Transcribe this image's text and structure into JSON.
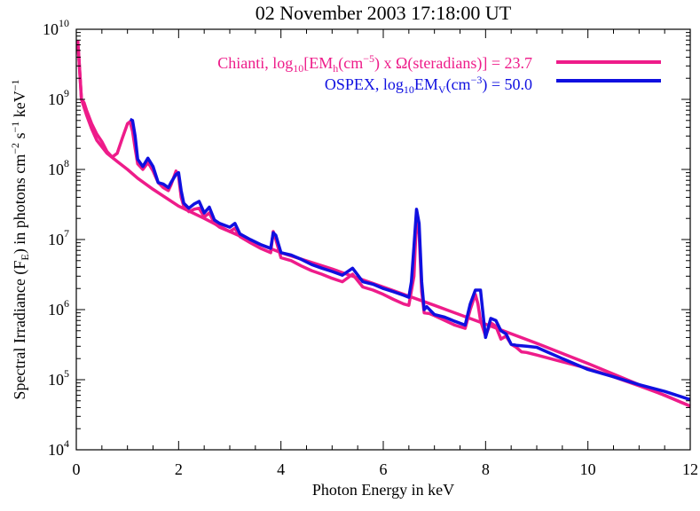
{
  "chart_data": {
    "type": "line",
    "title": "02 November 2003 17:18:00 UT",
    "xlabel": "Photon Energy in keV",
    "ylabel": "Spectral Irradiance (F_E) in photons cm^-2 s^-1 keV^-1",
    "xlim": [
      0,
      12
    ],
    "ylim": [
      10000,
      10000000000
    ],
    "yscale": "log",
    "grid": false,
    "legend_position": "top-right",
    "x_ticks": [
      0,
      2,
      4,
      6,
      8,
      10,
      12
    ],
    "y_ticks": [
      10000,
      100000,
      1000000,
      10000000,
      100000000,
      1000000000,
      10000000000
    ],
    "colors": {
      "chianti": "#ee1c8a",
      "ospex": "#1010e0"
    },
    "legend": [
      {
        "name": "Chianti, log10[EMh(cm^-5) x Ω(steradians)] = 23.7",
        "color": "#ee1c8a"
      },
      {
        "name": "OSPEX, log10EMV(cm^-3) = 50.0",
        "color": "#1010e0"
      }
    ],
    "series": [
      {
        "name": "Chianti, log10[EMh(cm^-5) x Ω(steradians)] = 23.7",
        "color": "#ee1c8a",
        "x": [
          0.03,
          0.05,
          0.1,
          0.15,
          0.2,
          0.3,
          0.4,
          0.5,
          0.6,
          0.7,
          0.8,
          0.9,
          1.0,
          1.05,
          1.1,
          1.15,
          1.2,
          1.3,
          1.4,
          1.45,
          1.5,
          1.6,
          1.7,
          1.8,
          1.85,
          1.95,
          2.0,
          2.05,
          2.1,
          2.2,
          2.3,
          2.4,
          2.5,
          2.6,
          2.7,
          2.8,
          3.0,
          3.1,
          3.2,
          3.4,
          3.6,
          3.8,
          3.85,
          3.9,
          4.0,
          4.2,
          4.4,
          4.6,
          4.8,
          5.0,
          5.2,
          5.4,
          5.6,
          5.8,
          6.0,
          6.2,
          6.4,
          6.5,
          6.6,
          6.65,
          6.7,
          6.75,
          6.8,
          6.9,
          7.0,
          7.2,
          7.4,
          7.6,
          7.7,
          7.8,
          7.85,
          7.9,
          8.0,
          8.1,
          8.2,
          8.3,
          8.4,
          8.5,
          8.6,
          8.7,
          8.8,
          9.0,
          9.5,
          10.0,
          10.5,
          11.0,
          11.5,
          12.0
        ],
        "y": [
          6000000000,
          4000000000,
          1000000000,
          900000000,
          700000000,
          450000000,
          320000000,
          250000000,
          180000000,
          150000000,
          170000000,
          280000000,
          450000000,
          480000000,
          350000000,
          200000000,
          120000000,
          100000000,
          125000000,
          110000000,
          95000000,
          65000000,
          55000000,
          50000000,
          60000000,
          95000000,
          80000000,
          40000000,
          30000000,
          25000000,
          27000000,
          28000000,
          21000000,
          24000000,
          17000000,
          15000000,
          13000000,
          14500000,
          11000000,
          9000000,
          7500000,
          6500000,
          13000000,
          10000000,
          5500000,
          5000000,
          4200000,
          3600000,
          3200000,
          2800000,
          2500000,
          3200000,
          2100000,
          1900000,
          1650000,
          1400000,
          1200000,
          1150000,
          3000000,
          20000000,
          12000000,
          1800000,
          900000,
          880000,
          820000,
          700000,
          600000,
          540000,
          1000000,
          1650000,
          1200000,
          700000,
          420000,
          650000,
          580000,
          380000,
          420000,
          320000,
          290000,
          250000,
          245000,
          225000,
          180000,
          145000,
          110000,
          82000,
          60000,
          42000
        ]
      },
      {
        "name": "OSPEX, log10EMV(cm^-3) = 50.0",
        "color": "#1010e0",
        "x": [
          1.05,
          1.1,
          1.15,
          1.2,
          1.3,
          1.4,
          1.5,
          1.6,
          1.7,
          1.8,
          1.85,
          1.95,
          2.0,
          2.05,
          2.1,
          2.2,
          2.3,
          2.4,
          2.5,
          2.6,
          2.7,
          2.8,
          3.0,
          3.1,
          3.2,
          3.4,
          3.6,
          3.8,
          3.85,
          3.9,
          4.0,
          4.2,
          4.4,
          4.6,
          4.8,
          5.0,
          5.2,
          5.4,
          5.6,
          5.8,
          6.0,
          6.2,
          6.4,
          6.5,
          6.55,
          6.6,
          6.65,
          6.7,
          6.75,
          6.8,
          6.85,
          7.0,
          7.2,
          7.4,
          7.6,
          7.7,
          7.8,
          7.9,
          8.0,
          8.1,
          8.2,
          8.3,
          8.4,
          8.5,
          8.6,
          8.8,
          9.0,
          9.2,
          9.5,
          10.0,
          10.5,
          11.0,
          11.5,
          12.0
        ],
        "y": [
          520000000,
          500000000,
          300000000,
          140000000,
          110000000,
          145000000,
          110000000,
          65000000,
          62000000,
          55000000,
          65000000,
          85000000,
          90000000,
          50000000,
          33000000,
          28000000,
          32000000,
          35000000,
          24000000,
          29000000,
          19000000,
          17000000,
          15000000,
          17000000,
          12000000,
          10000000,
          8500000,
          7500000,
          12500000,
          11500000,
          6500000,
          6000000,
          5200000,
          4400000,
          3900000,
          3500000,
          3100000,
          3900000,
          2500000,
          2300000,
          2000000,
          1800000,
          1600000,
          1500000,
          2500000,
          8000000,
          27000000,
          17000000,
          2500000,
          1000000,
          1100000,
          850000,
          780000,
          680000,
          600000,
          1200000,
          1900000,
          1900000,
          400000,
          750000,
          700000,
          500000,
          450000,
          320000,
          310000,
          300000,
          290000,
          250000,
          200000,
          140000,
          110000,
          85000,
          68000,
          52000
        ]
      },
      {
        "name": "",
        "color": "#ee1c8a",
        "continuum": true,
        "x": [
          0.03,
          0.1,
          0.2,
          0.3,
          0.4,
          0.6,
          0.8,
          1.0,
          1.2,
          1.5,
          2.0,
          2.5,
          3.0,
          3.5,
          4.0,
          5.0,
          6.0,
          7.0,
          8.0,
          9.0,
          10.0,
          11.0,
          12.0
        ],
        "y": [
          7000000000,
          1000000000,
          600000000,
          380000000,
          260000000,
          170000000,
          130000000,
          100000000,
          75000000,
          52000000,
          30000000,
          20000000,
          13000000,
          9000000,
          6500000,
          3800000,
          2100000,
          1150000,
          620000,
          330000,
          170000,
          85000,
          42000
        ]
      }
    ]
  }
}
